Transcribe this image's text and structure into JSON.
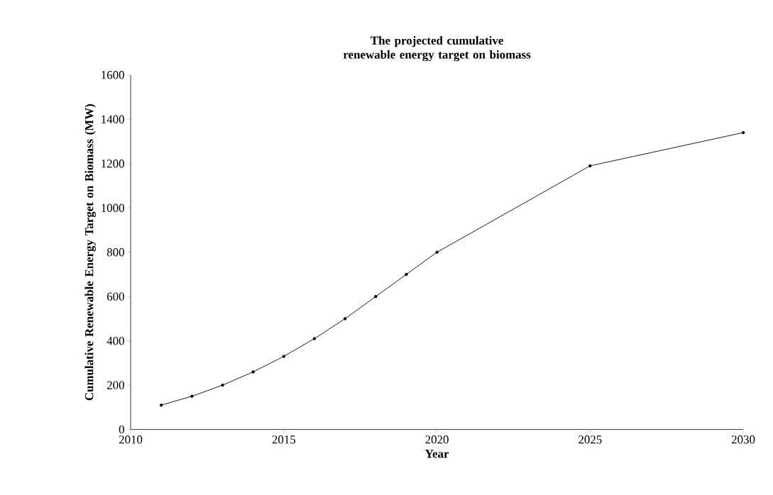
{
  "chart_data": {
    "type": "line",
    "title": "The projected cumulative renewable energy target on biomass",
    "xlabel": "Year",
    "ylabel": "Cumulative Renewable Energy Target on Biomass (MW)",
    "x": [
      2011,
      2012,
      2013,
      2014,
      2015,
      2016,
      2017,
      2018,
      2019,
      2020,
      2025,
      2030
    ],
    "values": [
      110,
      150,
      200,
      260,
      330,
      410,
      500,
      600,
      700,
      800,
      1190,
      1340
    ],
    "color": "#000000",
    "marker": "circle",
    "line_style": "solid",
    "xlim": [
      2010,
      2030
    ],
    "xticks": [
      2010,
      2015,
      2020,
      2025,
      2030
    ],
    "ylim": [
      0,
      1600
    ],
    "yticks": [
      0,
      200,
      400,
      600,
      800,
      1000,
      1200,
      1400,
      1600
    ],
    "grid": false
  }
}
